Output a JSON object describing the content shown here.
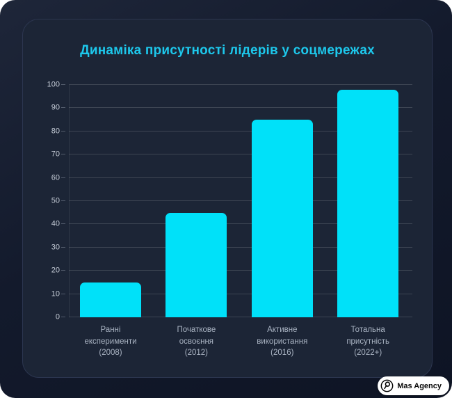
{
  "chart_data": {
    "type": "bar",
    "title": "Динаміка присутності лідерів у соцмережах",
    "categories": [
      "Ранні експерименти (2008)",
      "Початкове освоєння (2012)",
      "Активне використання (2016)",
      "Тотальна присутність (2022+)"
    ],
    "category_lines": [
      [
        "Ранні",
        "експерименти",
        "(2008)"
      ],
      [
        "Початкове",
        "освоєння",
        "(2012)"
      ],
      [
        "Активне",
        "використання",
        "(2016)"
      ],
      [
        "Тотальна",
        "присутність",
        "(2022+)"
      ]
    ],
    "values": [
      15,
      45,
      85,
      98
    ],
    "xlabel": "",
    "ylabel": "",
    "ylim": [
      0,
      100
    ],
    "yticks": [
      0,
      10,
      20,
      30,
      40,
      50,
      60,
      70,
      80,
      90,
      100
    ],
    "grid": true,
    "legend_position": "none",
    "bar_color": "#00e1f9",
    "title_color": "#1dc8ec"
  },
  "badge": {
    "label": "Mas Agency"
  },
  "colors": {
    "outer_background": "#131a2c",
    "card_background": "#1c2536",
    "card_border": "#2c3650",
    "grid_line": "#3d4554",
    "y_label": "#c4cbd6",
    "x_label": "#a9b3c2"
  }
}
